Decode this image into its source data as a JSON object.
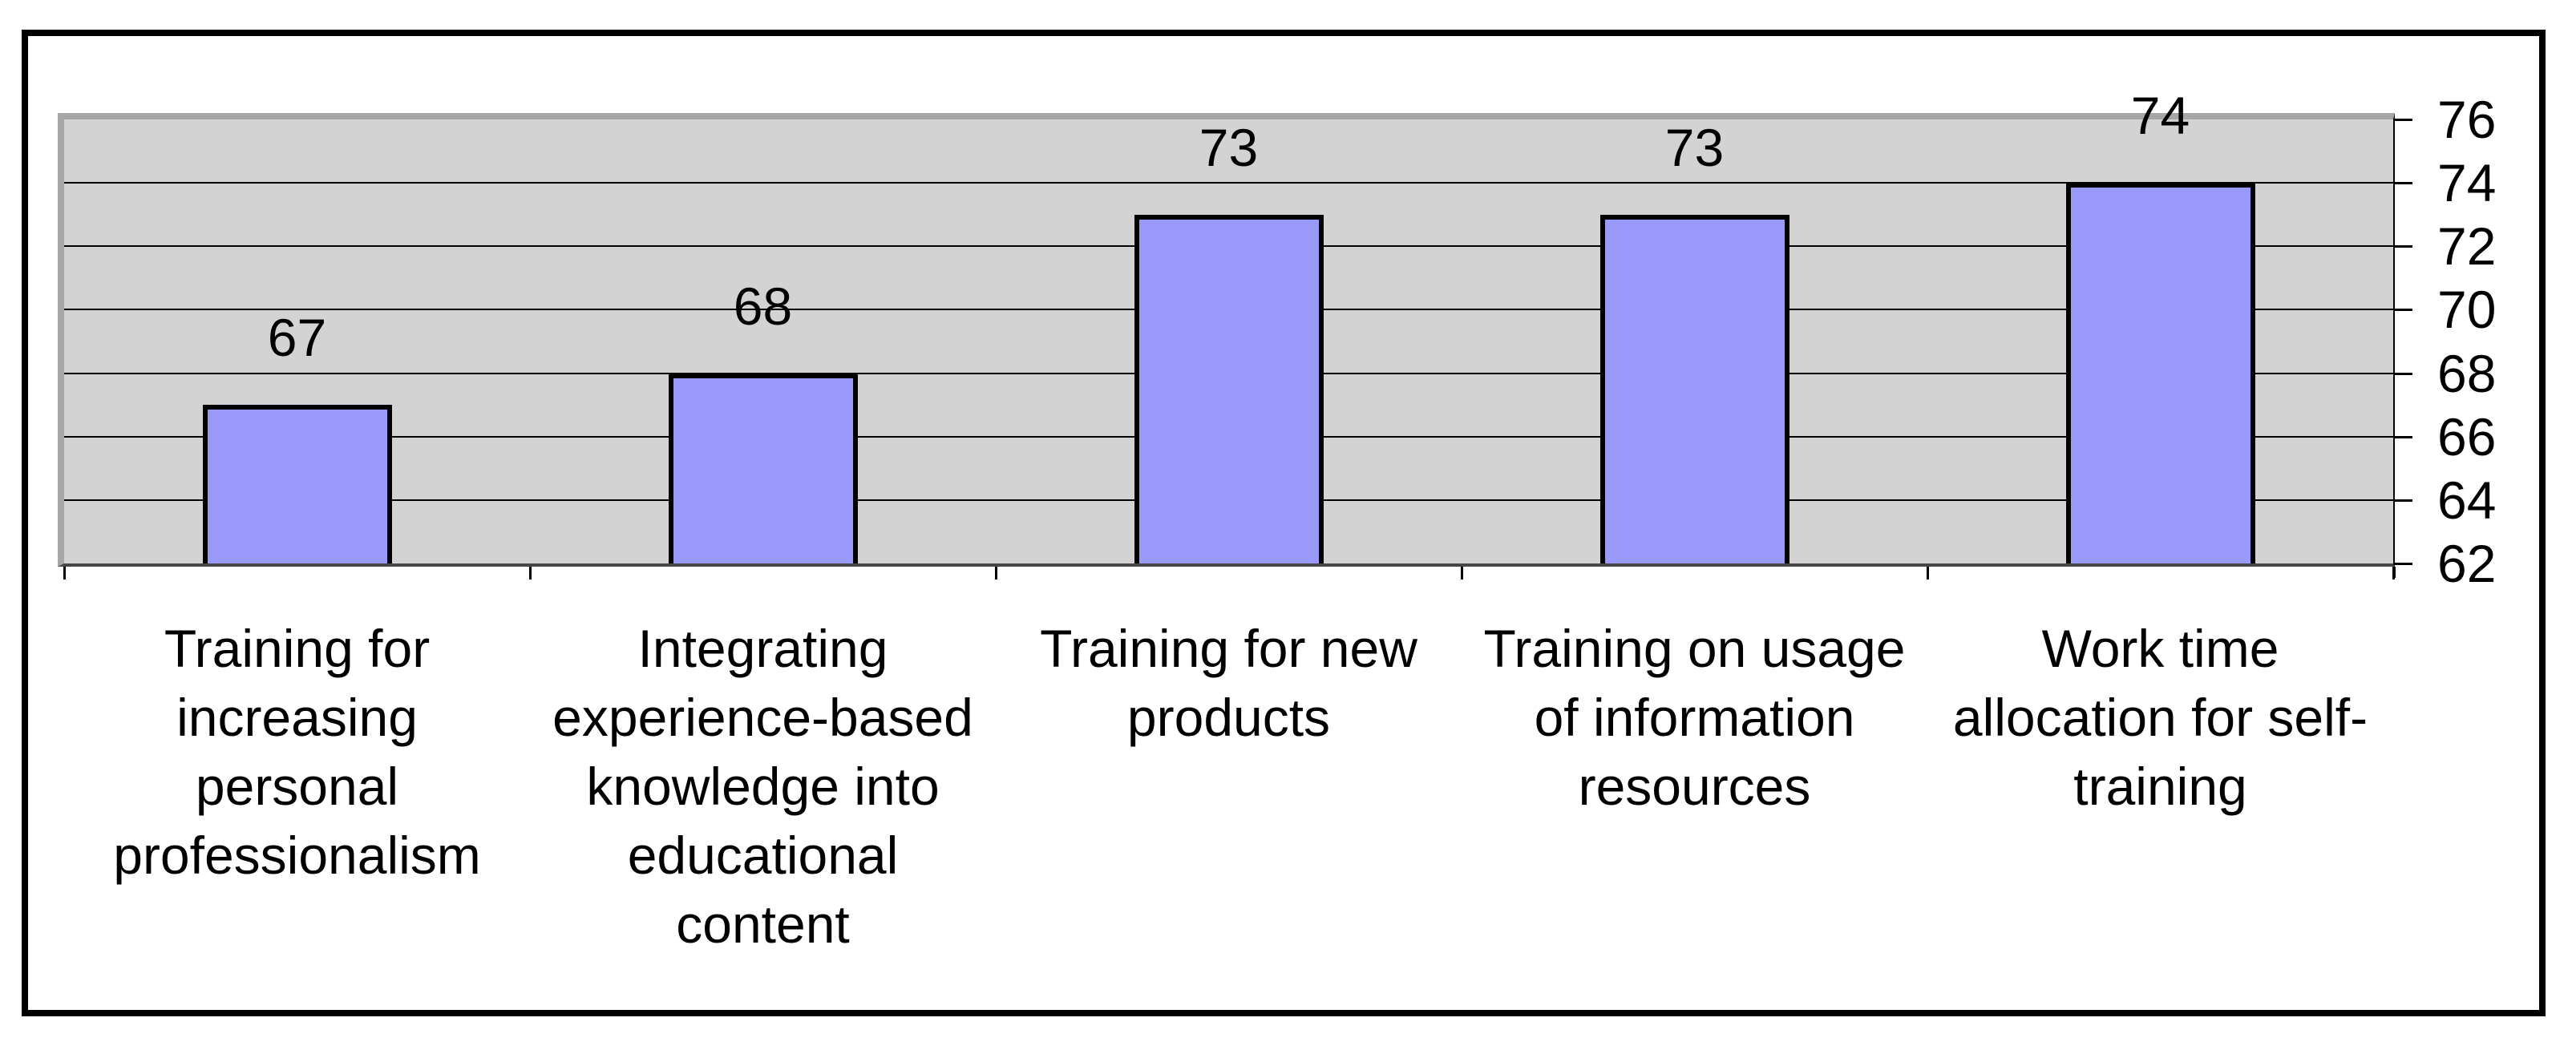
{
  "chart_data": {
    "type": "bar",
    "title": "",
    "categories": [
      "Training for increasing personal professionalism",
      "Integrating experience-based knowledge into educational content",
      "Training for new products",
      "Training on usage of information resources",
      "Work time allocation for self-training"
    ],
    "category_lines": [
      [
        "Training for",
        "increasing",
        "personal",
        "professionalism"
      ],
      [
        "Integrating",
        "experience-based",
        "knowledge into",
        "educational",
        "content"
      ],
      [
        "Training for new",
        "products"
      ],
      [
        "Training on usage",
        "of information",
        "resources"
      ],
      [
        "Work time",
        "allocation for self-",
        "training"
      ]
    ],
    "values": [
      67,
      68,
      73,
      73,
      74
    ],
    "value_labels": [
      "67",
      "68",
      "73",
      "73",
      "74"
    ],
    "xlabel": "",
    "ylabel": "",
    "ylim": [
      62,
      76
    ],
    "yticks": [
      62,
      64,
      66,
      68,
      70,
      72,
      74,
      76
    ],
    "ytick_side": "right",
    "grid": true,
    "legend": "none",
    "colors": {
      "bar_fill": "#9999fa",
      "bar_border": "#000000",
      "plot_background": "#d3d3d3",
      "plot_border": "#a6a6a6",
      "gridline": "#000000",
      "axis_line": "#474747",
      "text": "#000000",
      "figure_border": "#000000",
      "page_background": "#ffffff"
    }
  }
}
